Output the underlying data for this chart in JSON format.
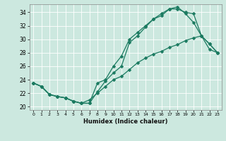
{
  "xlabel": "Humidex (Indice chaleur)",
  "bg_color": "#cce8df",
  "line_color": "#1a7a60",
  "grid_color": "#ffffff",
  "xlim": [
    -0.5,
    23.5
  ],
  "ylim": [
    19.5,
    35.2
  ],
  "xticks": [
    0,
    1,
    2,
    3,
    4,
    5,
    6,
    7,
    8,
    9,
    10,
    11,
    12,
    13,
    14,
    15,
    16,
    17,
    18,
    19,
    20,
    21,
    22,
    23
  ],
  "yticks": [
    20,
    22,
    24,
    26,
    28,
    30,
    32,
    34
  ],
  "line1_x": [
    0,
    1,
    2,
    3,
    4,
    5,
    6,
    7,
    8,
    9,
    10,
    11,
    12,
    13,
    14,
    15,
    16,
    17,
    18,
    19,
    20,
    21,
    22,
    23
  ],
  "line1_y": [
    23.5,
    23.0,
    21.8,
    21.5,
    21.3,
    20.8,
    20.5,
    20.5,
    22.2,
    23.8,
    25.0,
    26.0,
    29.5,
    30.5,
    31.8,
    33.0,
    33.5,
    34.5,
    34.8,
    33.8,
    32.5,
    30.5,
    29.3,
    28.0
  ],
  "line2_x": [
    0,
    1,
    2,
    3,
    4,
    5,
    6,
    7,
    8,
    9,
    10,
    11,
    12,
    13,
    14,
    15,
    16,
    17,
    18,
    19,
    20,
    21,
    22,
    23
  ],
  "line2_y": [
    23.5,
    23.0,
    21.8,
    21.5,
    21.3,
    20.8,
    20.5,
    20.5,
    23.5,
    24.0,
    26.0,
    27.5,
    30.0,
    31.0,
    32.0,
    33.0,
    33.8,
    34.5,
    34.5,
    34.0,
    33.8,
    30.5,
    29.3,
    28.0
  ],
  "line3_x": [
    0,
    1,
    2,
    3,
    4,
    5,
    6,
    7,
    8,
    9,
    10,
    11,
    12,
    13,
    14,
    15,
    16,
    17,
    18,
    19,
    20,
    21,
    22,
    23
  ],
  "line3_y": [
    23.5,
    23.0,
    21.8,
    21.5,
    21.3,
    20.8,
    20.5,
    21.0,
    22.0,
    23.0,
    24.0,
    24.5,
    25.5,
    26.5,
    27.2,
    27.8,
    28.2,
    28.8,
    29.2,
    29.8,
    30.2,
    30.5,
    28.5,
    28.0
  ]
}
